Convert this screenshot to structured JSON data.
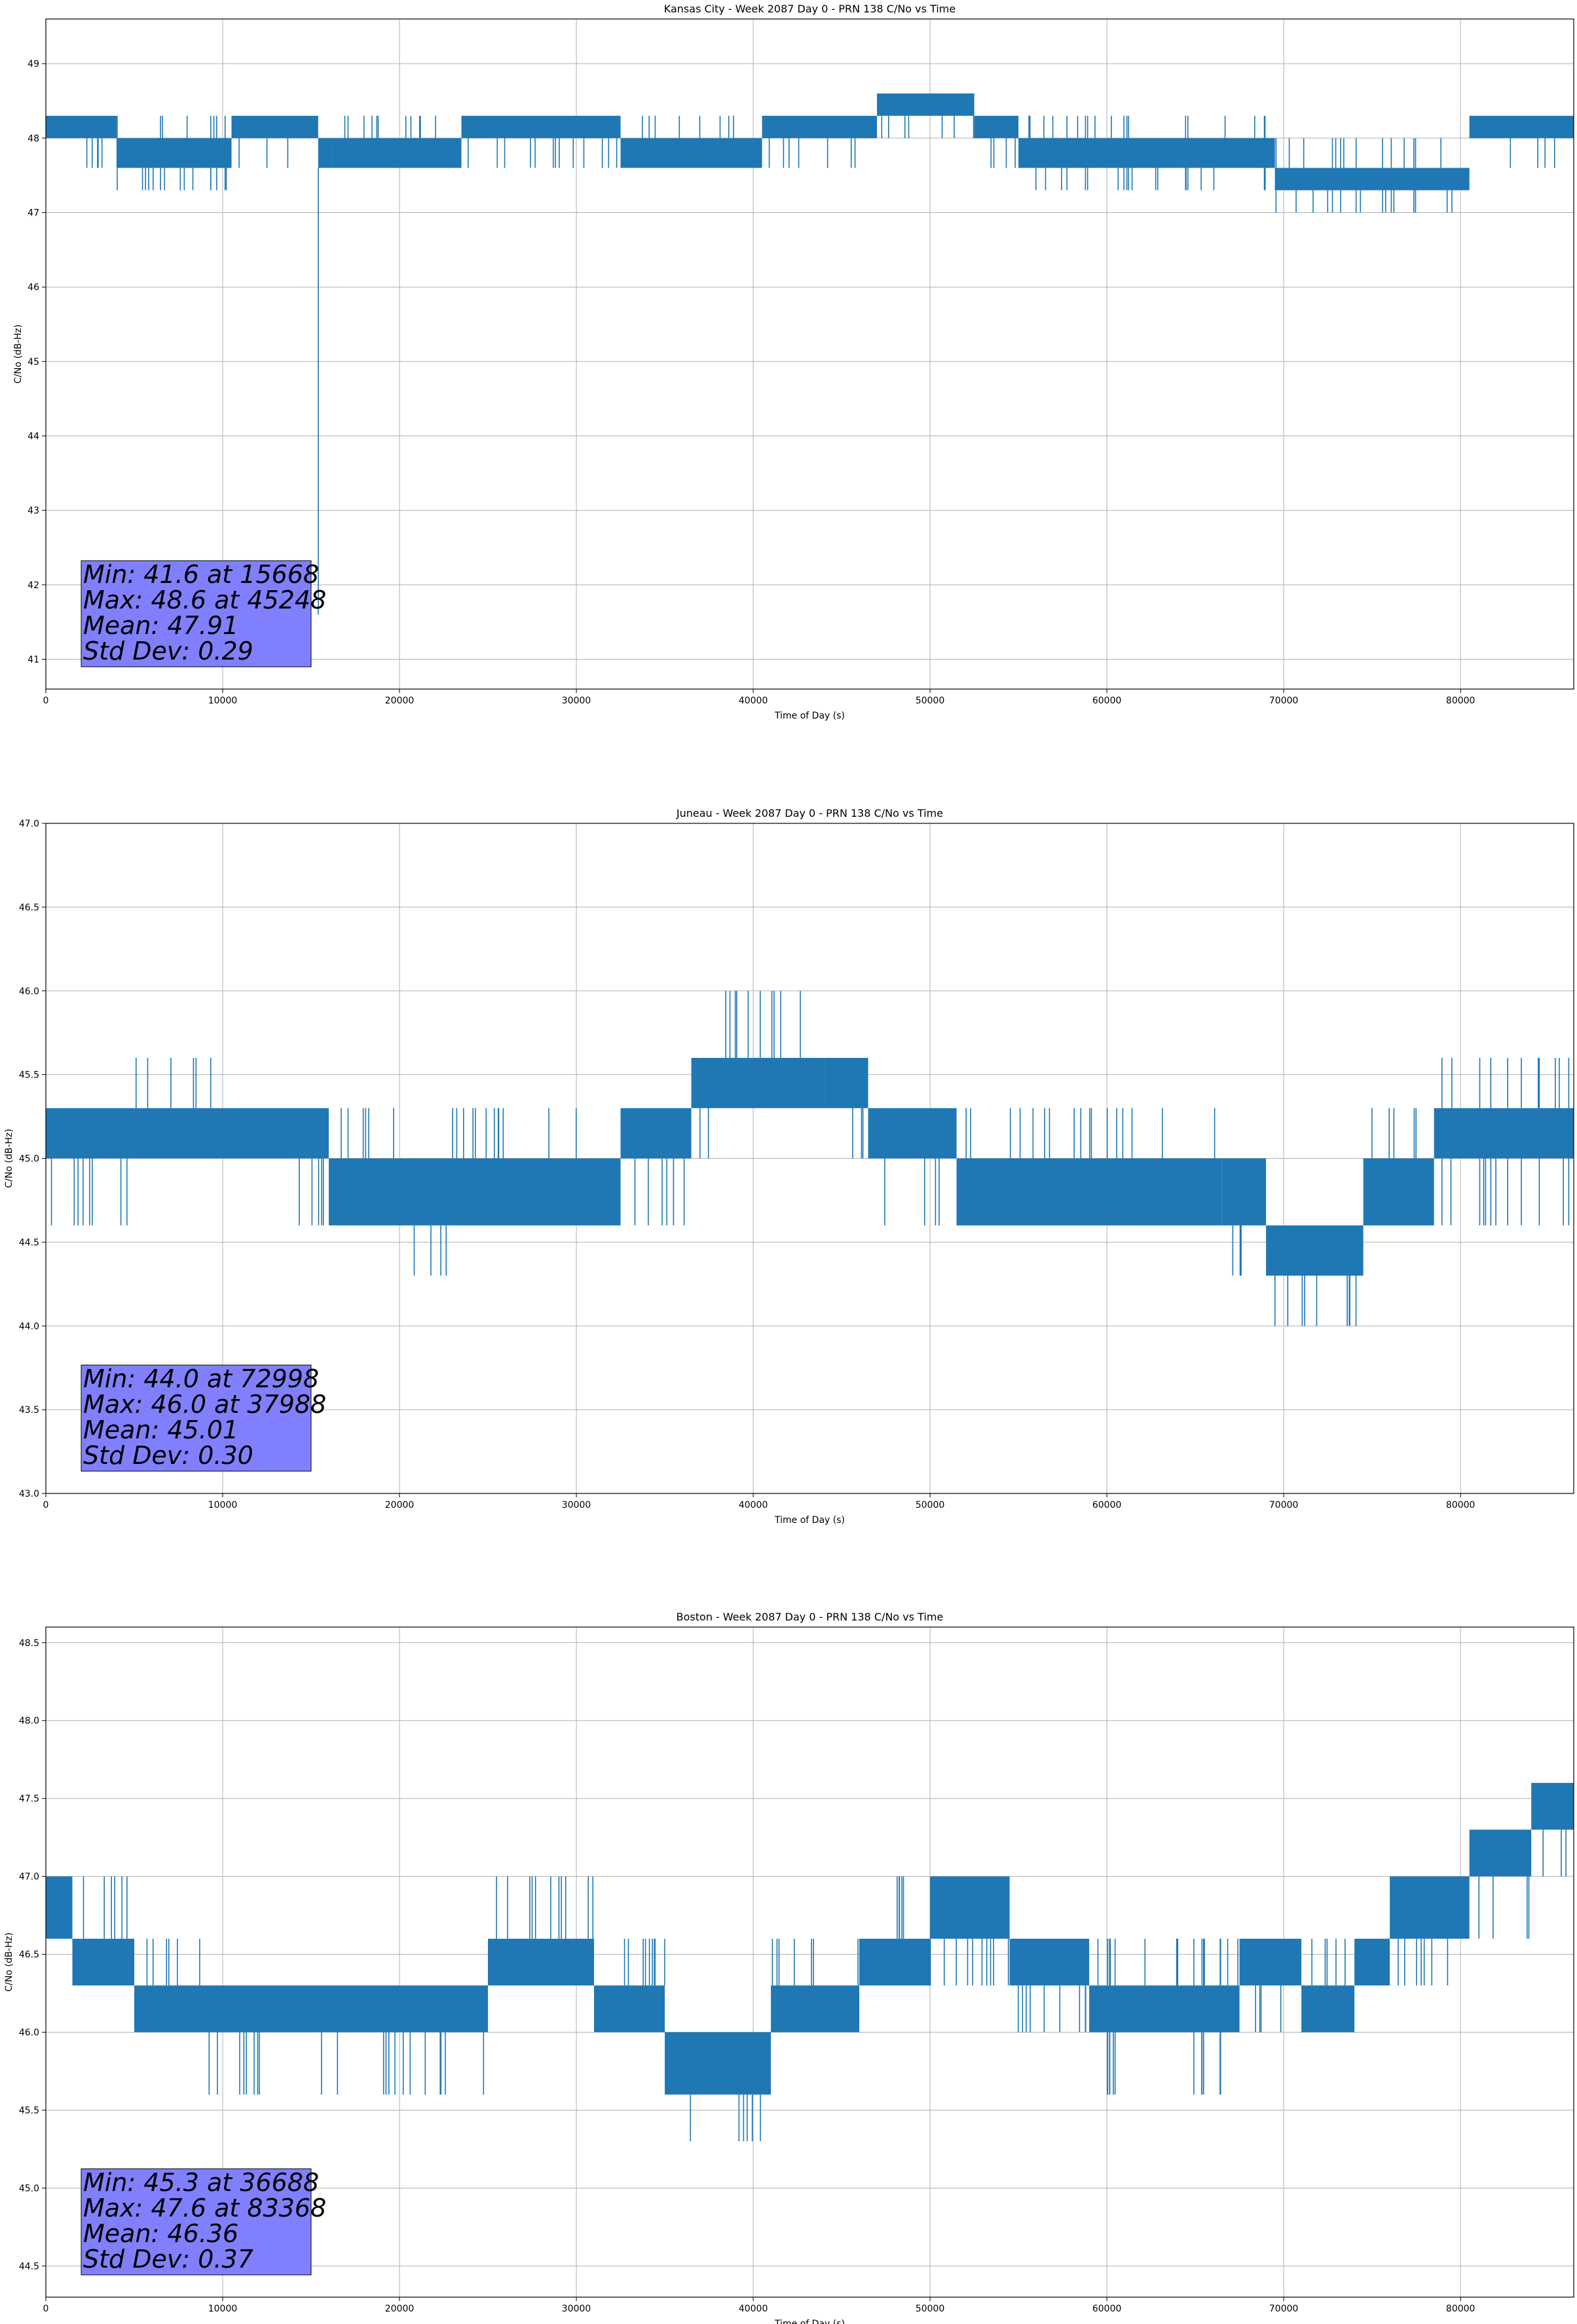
{
  "panels": [
    {
      "title": "Kansas City - Week 2087 Day 0 - PRN 138 C/No vs Time",
      "xlabel": "Time of Day (s)",
      "ylabel": "C/No (dB-Hz)",
      "stats": [
        "Min: 41.6 at 15668",
        "Max: 48.6 at 45248",
        "Mean: 47.91",
        "Std Dev: 0.29"
      ]
    },
    {
      "title": "Juneau - Week 2087 Day 0 - PRN 138 C/No vs Time",
      "xlabel": "Time of Day (s)",
      "ylabel": "C/No (dB-Hz)",
      "stats": [
        "Min: 44.0 at 72998",
        "Max: 46.0 at 37988",
        "Mean: 45.01",
        "Std Dev: 0.30"
      ]
    },
    {
      "title": "Boston - Week 2087 Day 0 - PRN 138 C/No vs Time",
      "xlabel": "Time of Day (s)",
      "ylabel": "C/No (dB-Hz)",
      "stats": [
        "Min: 45.3 at 36688",
        "Max: 47.6 at 83368",
        "Mean: 46.36",
        "Std Dev: 0.37"
      ]
    }
  ],
  "colors": {
    "series": "#1f77b4",
    "grid": "#b0b0b0",
    "stats_box": "#8080ff"
  },
  "chart_data": [
    {
      "type": "line",
      "title": "Kansas City - Week 2087 Day 0 - PRN 138 C/No vs Time",
      "xlabel": "Time of Day (s)",
      "ylabel": "C/No (dB-Hz)",
      "xlim": [
        0,
        86400
      ],
      "ylim": [
        40.6,
        49.6
      ],
      "xticks": [
        0,
        10000,
        20000,
        30000,
        40000,
        50000,
        60000,
        70000,
        80000
      ],
      "yticks": [
        41,
        42,
        43,
        44,
        45,
        46,
        47,
        48,
        49
      ],
      "grid": true,
      "segments": [
        {
          "x0": 0,
          "x1": 4000,
          "y": 48.3,
          "alt": 48.0,
          "spikes": [
            47.6
          ]
        },
        {
          "x0": 4000,
          "x1": 10500,
          "y": 47.6,
          "alt": 48.0,
          "spikes": [
            47.3,
            48.3
          ]
        },
        {
          "x0": 10500,
          "x1": 15400,
          "y": 48.3,
          "alt": 48.0,
          "spikes": [
            47.6
          ]
        },
        {
          "x0": 15400,
          "x1": 16200,
          "y": 47.6,
          "alt": 48.0,
          "spikes": [
            41.6,
            45.5
          ]
        },
        {
          "x0": 16200,
          "x1": 23500,
          "y": 47.6,
          "alt": 48.0,
          "spikes": [
            48.3
          ]
        },
        {
          "x0": 23500,
          "x1": 32500,
          "y": 48.3,
          "alt": 48.0,
          "spikes": [
            47.6
          ]
        },
        {
          "x0": 32500,
          "x1": 40500,
          "y": 47.6,
          "alt": 48.0,
          "spikes": [
            48.3
          ]
        },
        {
          "x0": 40500,
          "x1": 47000,
          "y": 48.3,
          "alt": 48.0,
          "spikes": [
            47.6
          ]
        },
        {
          "x0": 47000,
          "x1": 52500,
          "y": 48.6,
          "alt": 48.3,
          "spikes": [
            48.0
          ]
        },
        {
          "x0": 52500,
          "x1": 55000,
          "y": 48.3,
          "alt": 48.0,
          "spikes": [
            47.6
          ]
        },
        {
          "x0": 55000,
          "x1": 69500,
          "y": 47.6,
          "alt": 48.0,
          "spikes": [
            47.3,
            48.3
          ]
        },
        {
          "x0": 69500,
          "x1": 80500,
          "y": 47.3,
          "alt": 47.6,
          "spikes": [
            47.0,
            48.0
          ]
        },
        {
          "x0": 80500,
          "x1": 86400,
          "y": 48.0,
          "alt": 48.3,
          "spikes": [
            47.6
          ]
        }
      ],
      "annotation": [
        "Min: 41.6 at 15668",
        "Max: 48.6 at 45248",
        "Mean: 47.91",
        "Std Dev: 0.29"
      ]
    },
    {
      "type": "line",
      "title": "Juneau - Week 2087 Day 0 - PRN 138 C/No vs Time",
      "xlabel": "Time of Day (s)",
      "ylabel": "C/No (dB-Hz)",
      "xlim": [
        0,
        86400
      ],
      "ylim": [
        43.0,
        47.0
      ],
      "xticks": [
        0,
        10000,
        20000,
        30000,
        40000,
        50000,
        60000,
        70000,
        80000
      ],
      "yticks": [
        43.0,
        43.5,
        44.0,
        44.5,
        45.0,
        45.5,
        46.0,
        46.5,
        47.0
      ],
      "grid": true,
      "segments": [
        {
          "x0": 0,
          "x1": 5000,
          "y": 45.0,
          "alt": 45.3,
          "spikes": [
            44.6
          ]
        },
        {
          "x0": 5000,
          "x1": 14000,
          "y": 45.0,
          "alt": 45.3,
          "spikes": [
            45.6
          ]
        },
        {
          "x0": 14000,
          "x1": 16000,
          "y": 45.0,
          "alt": 45.3,
          "spikes": [
            44.6
          ]
        },
        {
          "x0": 16000,
          "x1": 20000,
          "y": 44.6,
          "alt": 45.0,
          "spikes": [
            45.3
          ]
        },
        {
          "x0": 20000,
          "x1": 23000,
          "y": 44.6,
          "alt": 45.0,
          "spikes": [
            44.3
          ]
        },
        {
          "x0": 23000,
          "x1": 32500,
          "y": 44.6,
          "alt": 45.0,
          "spikes": [
            45.3
          ]
        },
        {
          "x0": 32500,
          "x1": 36500,
          "y": 45.0,
          "alt": 45.3,
          "spikes": [
            44.6
          ]
        },
        {
          "x0": 36500,
          "x1": 38000,
          "y": 45.3,
          "alt": 45.6,
          "spikes": [
            45.0
          ]
        },
        {
          "x0": 38000,
          "x1": 44000,
          "y": 45.3,
          "alt": 45.6,
          "spikes": [
            46.0
          ]
        },
        {
          "x0": 44000,
          "x1": 46500,
          "y": 45.3,
          "alt": 45.6,
          "spikes": [
            45.0
          ]
        },
        {
          "x0": 46500,
          "x1": 51500,
          "y": 45.0,
          "alt": 45.3,
          "spikes": [
            44.6
          ]
        },
        {
          "x0": 51500,
          "x1": 66500,
          "y": 44.6,
          "alt": 45.0,
          "spikes": [
            45.3
          ]
        },
        {
          "x0": 66500,
          "x1": 69000,
          "y": 44.6,
          "alt": 45.0,
          "spikes": [
            44.3
          ]
        },
        {
          "x0": 69000,
          "x1": 74500,
          "y": 44.3,
          "alt": 44.6,
          "spikes": [
            44.0
          ]
        },
        {
          "x0": 74500,
          "x1": 78500,
          "y": 44.6,
          "alt": 45.0,
          "spikes": [
            45.3
          ]
        },
        {
          "x0": 78500,
          "x1": 86400,
          "y": 45.0,
          "alt": 45.3,
          "spikes": [
            44.6,
            45.6
          ]
        }
      ],
      "annotation": [
        "Min: 44.0 at 72998",
        "Max: 46.0 at 37988",
        "Mean: 45.01",
        "Std Dev: 0.30"
      ]
    },
    {
      "type": "line",
      "title": "Boston - Week 2087 Day 0 - PRN 138 C/No vs Time",
      "xlabel": "Time of Day (s)",
      "ylabel": "C/No (dB-Hz)",
      "xlim": [
        0,
        86400
      ],
      "ylim": [
        44.3,
        48.6
      ],
      "xticks": [
        0,
        10000,
        20000,
        30000,
        40000,
        50000,
        60000,
        70000,
        80000
      ],
      "yticks": [
        44.5,
        45.0,
        45.5,
        46.0,
        46.5,
        47.0,
        47.5,
        48.0,
        48.5
      ],
      "grid": true,
      "segments": [
        {
          "x0": 0,
          "x1": 1500,
          "y": 46.6,
          "alt": 47.0,
          "spikes": []
        },
        {
          "x0": 1500,
          "x1": 5000,
          "y": 46.3,
          "alt": 46.6,
          "spikes": [
            47.0
          ]
        },
        {
          "x0": 5000,
          "x1": 9000,
          "y": 46.0,
          "alt": 46.3,
          "spikes": [
            46.6
          ]
        },
        {
          "x0": 9000,
          "x1": 25000,
          "y": 46.0,
          "alt": 46.3,
          "spikes": [
            45.6
          ]
        },
        {
          "x0": 25000,
          "x1": 31000,
          "y": 46.3,
          "alt": 46.6,
          "spikes": [
            47.0
          ]
        },
        {
          "x0": 31000,
          "x1": 35000,
          "y": 46.0,
          "alt": 46.3,
          "spikes": [
            46.6
          ]
        },
        {
          "x0": 35000,
          "x1": 41000,
          "y": 45.6,
          "alt": 46.0,
          "spikes": [
            45.3
          ]
        },
        {
          "x0": 41000,
          "x1": 46000,
          "y": 46.0,
          "alt": 46.3,
          "spikes": [
            46.6
          ]
        },
        {
          "x0": 46000,
          "x1": 50000,
          "y": 46.3,
          "alt": 46.6,
          "spikes": [
            47.0
          ]
        },
        {
          "x0": 50000,
          "x1": 54500,
          "y": 46.6,
          "alt": 47.0,
          "spikes": [
            46.3
          ]
        },
        {
          "x0": 54500,
          "x1": 59000,
          "y": 46.3,
          "alt": 46.6,
          "spikes": [
            46.0
          ]
        },
        {
          "x0": 59000,
          "x1": 67500,
          "y": 46.0,
          "alt": 46.3,
          "spikes": [
            46.6,
            45.6
          ]
        },
        {
          "x0": 67500,
          "x1": 71000,
          "y": 46.3,
          "alt": 46.6,
          "spikes": [
            46.0
          ]
        },
        {
          "x0": 71000,
          "x1": 74000,
          "y": 46.0,
          "alt": 46.3,
          "spikes": [
            46.6
          ]
        },
        {
          "x0": 74000,
          "x1": 76000,
          "y": 46.3,
          "alt": 46.6,
          "spikes": []
        },
        {
          "x0": 76000,
          "x1": 80500,
          "y": 46.6,
          "alt": 47.0,
          "spikes": [
            46.3
          ]
        },
        {
          "x0": 80500,
          "x1": 84000,
          "y": 47.0,
          "alt": 47.3,
          "spikes": [
            46.6
          ]
        },
        {
          "x0": 84000,
          "x1": 86400,
          "y": 47.3,
          "alt": 47.6,
          "spikes": [
            47.0
          ]
        }
      ],
      "annotation": [
        "Min: 45.3 at 36688",
        "Max: 47.6 at 83368",
        "Mean: 46.36",
        "Std Dev: 0.37"
      ]
    }
  ]
}
